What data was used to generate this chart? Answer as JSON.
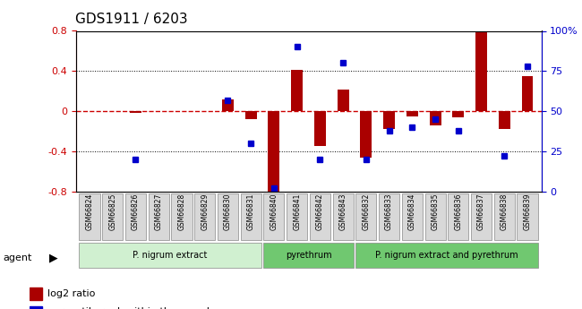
{
  "title": "GDS1911 / 6203",
  "samples": [
    "GSM66824",
    "GSM66825",
    "GSM66826",
    "GSM66827",
    "GSM66828",
    "GSM66829",
    "GSM66830",
    "GSM66831",
    "GSM66840",
    "GSM66841",
    "GSM66842",
    "GSM66843",
    "GSM66832",
    "GSM66833",
    "GSM66834",
    "GSM66835",
    "GSM66836",
    "GSM66837",
    "GSM66838",
    "GSM66839"
  ],
  "log2_ratio": [
    0.0,
    0.0,
    -0.02,
    0.0,
    0.0,
    0.0,
    0.12,
    -0.08,
    -0.82,
    0.41,
    -0.35,
    0.22,
    -0.46,
    -0.18,
    -0.05,
    -0.14,
    -0.06,
    0.82,
    -0.18,
    0.35
  ],
  "pct_rank": [
    null,
    null,
    20,
    null,
    null,
    null,
    57,
    30,
    2,
    90,
    20,
    80,
    20,
    38,
    40,
    45,
    38,
    null,
    22,
    78
  ],
  "groups": [
    {
      "label": "P. nigrum extract",
      "start": 0,
      "end": 7,
      "color": "#c8f0c8"
    },
    {
      "label": "pyrethrum",
      "start": 8,
      "end": 11,
      "color": "#90d890"
    },
    {
      "label": "P. nigrum extract and pyrethrum",
      "start": 12,
      "end": 19,
      "color": "#90d890"
    }
  ],
  "ylim_left": [
    -0.8,
    0.8
  ],
  "ylim_right": [
    0,
    100
  ],
  "bar_color": "#aa0000",
  "dot_color": "#0000cc",
  "zero_line_color": "#cc0000",
  "grid_color": "#000000",
  "bg_color": "#ffffff"
}
